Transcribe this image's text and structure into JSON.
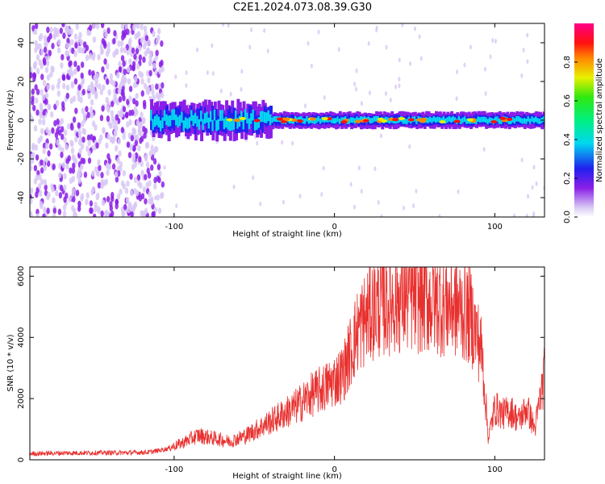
{
  "title": "C2E1.2024.073.08.39.G30",
  "chart_data": [
    {
      "type": "heatmap",
      "xlabel": "Height of straight line (km)",
      "ylabel": "Frequency (Hz)",
      "xlim": [
        -190,
        131
      ],
      "ylim": [
        -50,
        50
      ],
      "xticks": [
        -100,
        0,
        100
      ],
      "yticks": [
        -40,
        -20,
        0,
        20,
        40
      ],
      "colorbar": {
        "label": "Normalized spectral amplitude",
        "ticks": [
          0.0,
          0.2,
          0.4,
          0.6,
          0.8
        ],
        "range": [
          0,
          1
        ]
      },
      "band": {
        "center_hz": 0,
        "peak_amplitude": 1.0,
        "onset_km": -115
      }
    },
    {
      "type": "line",
      "xlabel": "Height of straight line (km)",
      "ylabel": "SNR (10 * v/v)",
      "xlim": [
        -190,
        131
      ],
      "ylim": [
        0,
        6300
      ],
      "xticks": [
        -100,
        0,
        100
      ],
      "yticks": [
        0,
        2000,
        4000,
        6000
      ],
      "color": "#e8312f",
      "series": [
        {
          "x": [
            -190,
            -170,
            -150,
            -130,
            -115,
            -105,
            -95,
            -85,
            -75,
            -65,
            -55,
            -45,
            -35,
            -25,
            -15,
            -5,
            5,
            15,
            25,
            35,
            45,
            55,
            65,
            75,
            85,
            92,
            96,
            100,
            105,
            110,
            115,
            120,
            125,
            131
          ],
          "y": [
            200,
            220,
            230,
            230,
            250,
            350,
            550,
            800,
            700,
            600,
            800,
            1100,
            1400,
            1700,
            2100,
            2400,
            2800,
            4300,
            5000,
            5200,
            5300,
            5250,
            5150,
            5050,
            4700,
            3500,
            700,
            1700,
            1500,
            1600,
            1300,
            1700,
            1000,
            2800
          ]
        }
      ]
    }
  ]
}
